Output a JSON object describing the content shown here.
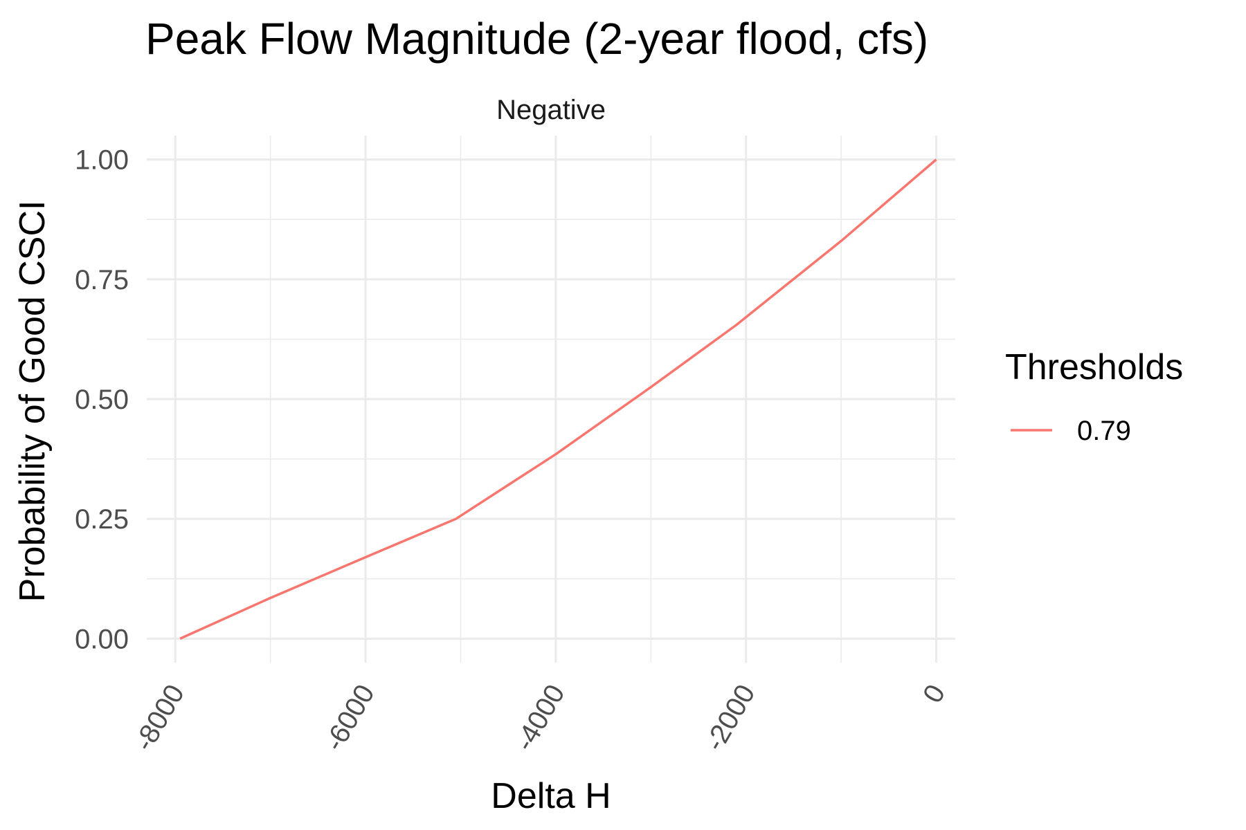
{
  "chart_data": {
    "type": "line",
    "title": "Peak Flow Magnitude (2-year flood, cfs)",
    "facet_label": "Negative",
    "xlabel": "Delta H",
    "ylabel": "Probability of Good CSCI",
    "xlim": [
      -8300,
      200
    ],
    "ylim": [
      -0.05,
      1.05
    ],
    "x_ticks": [
      -8000,
      -6000,
      -4000,
      -2000,
      0
    ],
    "x_tick_labels": [
      "-8000",
      "-6000",
      "-4000",
      "-2000",
      "0"
    ],
    "y_ticks": [
      0,
      0.25,
      0.5,
      0.75,
      1.0
    ],
    "y_tick_labels": [
      "0.00",
      "0.25",
      "0.50",
      "0.75",
      "1.00"
    ],
    "grid": true,
    "legend": {
      "title": "Thresholds",
      "position": "right"
    },
    "series": [
      {
        "name": "0.79",
        "color": "#F8766D",
        "x": [
          -7950,
          -7000,
          -6000,
          -5050,
          -4000,
          -3000,
          -2100,
          -1000,
          0
        ],
        "y": [
          0.0,
          0.085,
          0.17,
          0.25,
          0.385,
          0.525,
          0.655,
          0.83,
          1.0
        ]
      }
    ]
  }
}
